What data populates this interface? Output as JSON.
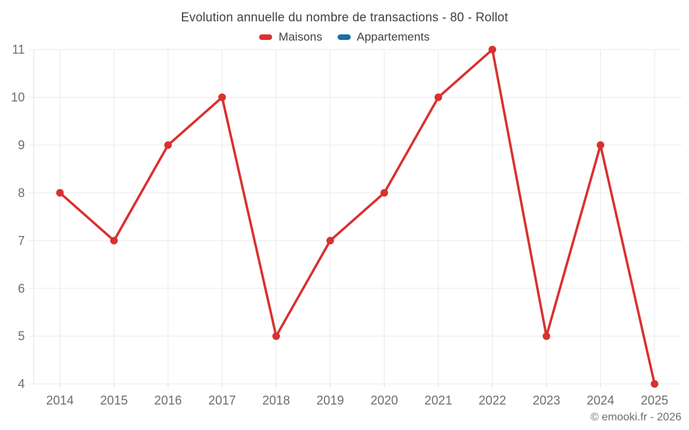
{
  "header": {
    "title": "Evolution annuelle du nombre de transactions - 80 - Rollot"
  },
  "legend": [
    {
      "label": "Maisons",
      "color": "#d8312f"
    },
    {
      "label": "Appartements",
      "color": "#1a6fa8"
    }
  ],
  "footer": {
    "copyright": "© emooki.fr - 2026"
  },
  "chart_data": {
    "type": "line",
    "title": "Evolution annuelle du nombre de transactions - 80 - Rollot",
    "categories": [
      "2014",
      "2015",
      "2016",
      "2017",
      "2018",
      "2019",
      "2020",
      "2021",
      "2022",
      "2023",
      "2024",
      "2025"
    ],
    "series": [
      {
        "name": "Maisons",
        "color": "#d8312f",
        "values": [
          8,
          7,
          9,
          10,
          5,
          7,
          8,
          10,
          11,
          5,
          9,
          4
        ]
      },
      {
        "name": "Appartements",
        "color": "#1a6fa8",
        "values": []
      }
    ],
    "y_ticks": [
      4,
      5,
      6,
      7,
      8,
      9,
      10,
      11
    ],
    "ylim": [
      4,
      11
    ],
    "xlabel": "",
    "ylabel": "",
    "grid": true,
    "legend_position": "top",
    "marker": "circle",
    "colors": {
      "grid": "#e9e9e9",
      "axis_border": "#e2e2e2",
      "tick_label": "#6e6e6e"
    }
  }
}
